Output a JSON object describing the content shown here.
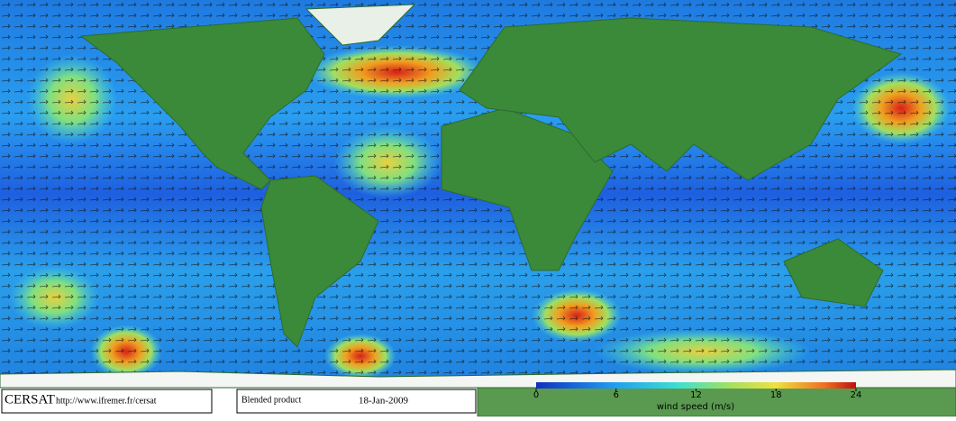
{
  "footer": {
    "logo": "CERSAT",
    "url": "http://www.ifremer.fr/cersat",
    "product": "Blended product",
    "date": "18-Jan-2009"
  },
  "colorbar": {
    "label": "wind speed (m/s)",
    "lim": [
      0,
      24
    ],
    "ticks": [
      0,
      6,
      12,
      18,
      24
    ]
  }
}
